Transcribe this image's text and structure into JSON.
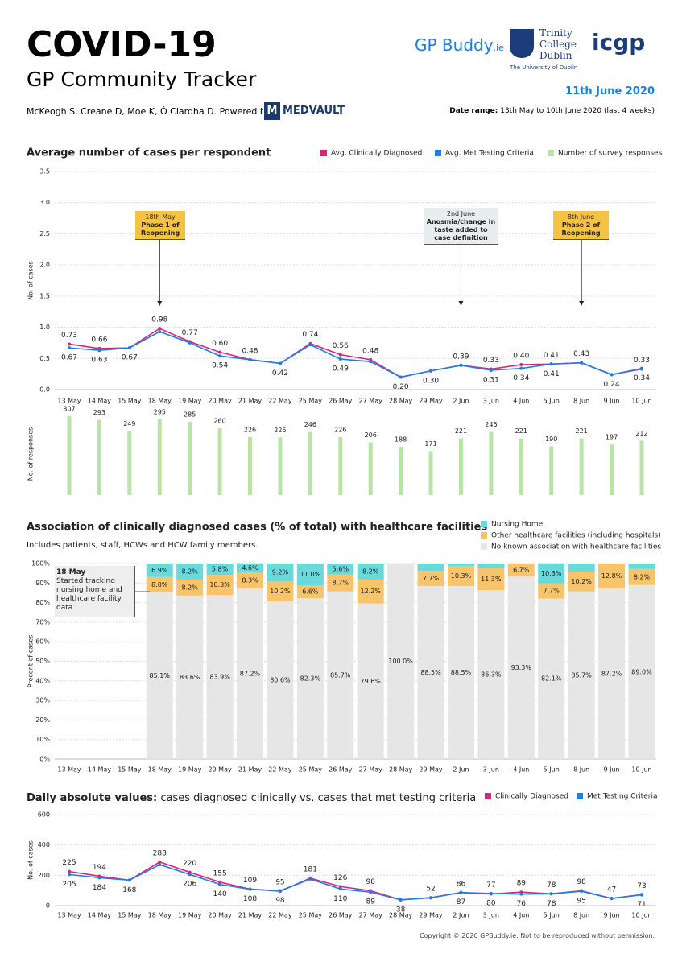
{
  "header": {
    "title": "COVID-19",
    "subtitle": "GP Community Tracker",
    "authors": "McKeogh S, Creane D, Moe K, Ó Ciardha D.  Powered by:",
    "powered_by": "MEDVAULT",
    "date": "11th June 2020",
    "date_range_label": "Date range:",
    "date_range": "13th May to 10th June 2020 (last 4 weeks)",
    "logo_gpbuddy": "GP Buddy",
    "logo_gpbuddy_suffix": ".ie",
    "logo_trinity": [
      "Trinity",
      "College",
      "Dublin"
    ],
    "logo_trinity_sub": "The University of Dublin",
    "logo_icgp": "icgp"
  },
  "footer": "Copyright © 2020 GPBuddy.ie. Not to be reproduced without permission.",
  "chart_data": [
    {
      "type": "line",
      "title": "Average number of cases per respondent",
      "y_label": "No. of cases",
      "categories": [
        "13 May",
        "14 May",
        "15 May",
        "18 May",
        "19 May",
        "20 May",
        "21 May",
        "22 May",
        "25 May",
        "26 May",
        "27 May",
        "28 May",
        "29 May",
        "2 Jun",
        "3 Jun",
        "4 Jun",
        "5 Jun",
        "8 Jun",
        "9 Jun",
        "10 Jun"
      ],
      "ylim": [
        0,
        3.5
      ],
      "yticks": [
        {
          "value": 0,
          "label": "0.0"
        },
        0.5,
        {
          "value": 1,
          "label": "1.0"
        },
        1.5,
        {
          "value": 2,
          "label": "2.0"
        },
        2.5,
        {
          "value": 3,
          "label": "3.0"
        },
        3.5
      ],
      "grid": true,
      "series": [
        {
          "name": "Avg. Clinically Diagnosed",
          "color": "#e0227a",
          "values": [
            0.73,
            0.66,
            0.67,
            0.98,
            0.77,
            0.6,
            0.48,
            0.42,
            0.74,
            0.56,
            0.48,
            0.2,
            0.3,
            0.39,
            0.33,
            0.4,
            0.41,
            0.43,
            0.24,
            0.33
          ],
          "value_labels": [
            "0.73",
            "0.66",
            null,
            "0.98",
            "0.77",
            "0.60",
            "0.48",
            null,
            "0.74",
            "0.56",
            "0.48",
            null,
            null,
            "0.39",
            "0.33",
            "0.40",
            "0.41",
            "0.43",
            null,
            "0.33"
          ]
        },
        {
          "name": "Avg. Met Testing Criteria",
          "color": "#1a7ee6",
          "values": [
            0.67,
            0.63,
            0.67,
            0.93,
            0.75,
            0.54,
            0.48,
            0.42,
            0.72,
            0.49,
            0.45,
            0.2,
            0.3,
            0.39,
            0.31,
            0.34,
            0.41,
            0.43,
            0.24,
            0.34
          ],
          "value_labels": [
            "0.67",
            "0.63",
            "0.67",
            null,
            null,
            "0.54",
            null,
            "0.42",
            null,
            "0.49",
            null,
            "0.20",
            "0.30",
            null,
            "0.31",
            "0.34",
            "0.41",
            null,
            "0.24",
            "0.34"
          ]
        }
      ],
      "annotations": [
        {
          "date": "18th May",
          "text": "Phase 1 of Reopening"
        },
        {
          "date": "2nd June",
          "text": "Anosmia/change in taste added to case definition"
        },
        {
          "date": "8th June",
          "text": "Phase 2 of Reopening"
        }
      ]
    },
    {
      "type": "bar",
      "y_label": "No. of responses",
      "ylim": [
        0,
        320
      ],
      "series": [
        {
          "name": "Number of survey responses",
          "color": "#b9e4a8",
          "values": [
            307,
            293,
            249,
            295,
            285,
            260,
            226,
            225,
            246,
            226,
            206,
            188,
            171,
            221,
            246,
            221,
            190,
            221,
            197,
            212
          ]
        }
      ]
    },
    {
      "type": "stacked_bar",
      "title": "Association of clinically diagnosed cases (% of total) with healthcare facilities",
      "subtitle": "Includes patients, staff, HCWs and HCW family members.",
      "y_label": "Precent of cases",
      "categories": [
        "13 May",
        "14 May",
        "15 May",
        "18 May",
        "19 May",
        "20 May",
        "21 May",
        "22 May",
        "25 May",
        "26 May",
        "27 May",
        "28 May",
        "29 May",
        "2 Jun",
        "3 Jun",
        "4 Jun",
        "5 Jun",
        "8 Jun",
        "9 Jun",
        "10 Jun"
      ],
      "ylim": [
        0,
        100
      ],
      "yticks": [
        {
          "value": 0,
          "label": "0%"
        },
        {
          "value": 10,
          "label": "10%"
        },
        {
          "value": 20,
          "label": "20%"
        },
        {
          "value": 30,
          "label": "30%"
        },
        {
          "value": 40,
          "label": "40%"
        },
        {
          "value": 50,
          "label": "50%"
        },
        {
          "value": 60,
          "label": "60%"
        },
        {
          "value": 70,
          "label": "70%"
        },
        {
          "value": 80,
          "label": "80%"
        },
        {
          "value": 90,
          "label": "90%"
        },
        {
          "value": 100,
          "label": "100%"
        }
      ],
      "grid": true,
      "series": [
        {
          "name": "Nursing Home",
          "color": "#6ad9dc",
          "values": [
            null,
            null,
            null,
            6.9,
            8.2,
            5.8,
            4.6,
            9.2,
            11.0,
            5.6,
            8.2,
            0,
            3.8,
            1.2,
            2.4,
            0,
            10.3,
            4.1,
            0,
            2.8
          ],
          "value_labels": [
            null,
            null,
            null,
            "6.9%",
            "8.2%",
            "5.8%",
            "4.6%",
            "9.2%",
            "11.0%",
            "5.6%",
            "8.2%",
            null,
            null,
            null,
            null,
            null,
            "10.3%",
            null,
            null,
            null
          ]
        },
        {
          "name": "Other healthcare facilities (including hospitals)",
          "color": "#f7c46b",
          "values": [
            null,
            null,
            null,
            8.0,
            8.2,
            10.3,
            8.3,
            10.2,
            6.6,
            8.7,
            12.2,
            0,
            7.7,
            10.3,
            11.3,
            6.7,
            7.7,
            10.2,
            12.8,
            8.2
          ],
          "value_labels": [
            null,
            null,
            null,
            "8.0%",
            "8.2%",
            "10.3%",
            "8.3%",
            "10.2%",
            "6.6%",
            "8.7%",
            "12.2%",
            null,
            "7.7%",
            "10.3%",
            "11.3%",
            "6.7%",
            "7.7%",
            "10.2%",
            "12.8%",
            "8.2%"
          ]
        },
        {
          "name": "No known association with healthcare facilities",
          "color": "#e6e6e6",
          "values": [
            null,
            null,
            null,
            85.1,
            83.6,
            83.9,
            87.2,
            80.6,
            82.3,
            85.7,
            79.6,
            100.0,
            88.5,
            88.5,
            86.3,
            93.3,
            82.1,
            85.7,
            87.2,
            89.0
          ],
          "value_labels": [
            null,
            null,
            null,
            "85.1%",
            "83.6%",
            "83.9%",
            "87.2%",
            "80.6%",
            "82.3%",
            "85.7%",
            "79.6%",
            "100.0%",
            "88.5%",
            "88.5%",
            "86.3%",
            "93.3%",
            "82.1%",
            "85.7%",
            "87.2%",
            "89.0%"
          ]
        }
      ],
      "annotations": [
        {
          "date": "18 May",
          "text": "Started tracking nursing home and healthcare facility data"
        }
      ]
    },
    {
      "type": "line",
      "title": "Daily absolute values:",
      "subtitle": "cases diagnosed clinically vs. cases that met testing criteria",
      "y_label": "No. of cases",
      "categories": [
        "13 May",
        "14 May",
        "15 May",
        "18 May",
        "19 May",
        "20 May",
        "21 May",
        "22 May",
        "25 May",
        "26 May",
        "27 May",
        "28 May",
        "29 May",
        "2 Jun",
        "3 Jun",
        "4 Jun",
        "5 Jun",
        "8 Jun",
        "9 Jun",
        "10 Jun"
      ],
      "ylim": [
        0,
        600
      ],
      "yticks": [
        0,
        200,
        400,
        600
      ],
      "grid": true,
      "series": [
        {
          "name": "Clinically Diagnosed",
          "color": "#e0227a",
          "values": [
            225,
            194,
            168,
            288,
            220,
            155,
            109,
            95,
            181,
            126,
            98,
            38,
            52,
            86,
            77,
            89,
            78,
            98,
            47,
            73
          ],
          "value_labels": [
            "225",
            "194",
            null,
            "288",
            "220",
            "155",
            "109",
            "95",
            "181",
            "126",
            "98",
            null,
            "52",
            "86",
            "77",
            "89",
            "78",
            "98",
            "47",
            "73"
          ]
        },
        {
          "name": "Met Testing Criteria",
          "color": "#1a7ee6",
          "values": [
            205,
            184,
            168,
            270,
            206,
            140,
            108,
            98,
            175,
            110,
            89,
            38,
            52,
            87,
            80,
            76,
            78,
            95,
            47,
            71
          ],
          "value_labels": [
            "205",
            "184",
            "168",
            null,
            "206",
            "140",
            "108",
            "98",
            null,
            "110",
            "89",
            "38",
            null,
            "87",
            "80",
            "76",
            "78",
            "95",
            null,
            "71"
          ]
        }
      ]
    }
  ]
}
